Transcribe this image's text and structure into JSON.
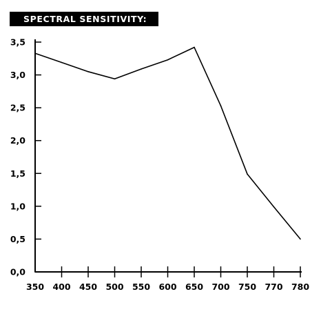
{
  "chart_data": {
    "type": "line",
    "title": "SPECTRAL SENSITIVITY:",
    "xlabel": "",
    "ylabel": "",
    "categories": [
      "350",
      "400",
      "450",
      "500",
      "550",
      "600",
      "650",
      "700",
      "750",
      "770",
      "780"
    ],
    "y_tick_labels": [
      "0,0",
      "0,5",
      "1,0",
      "1,5",
      "2,0",
      "2,5",
      "3,0",
      "3,5"
    ],
    "ylim": [
      0,
      3.5
    ],
    "grid": false,
    "series": [
      {
        "values": [
          3.33,
          3.19,
          3.05,
          2.94,
          3.09,
          3.23,
          3.42,
          2.53,
          1.49,
          0.99,
          0.5
        ]
      }
    ],
    "line_color": "#000000"
  }
}
